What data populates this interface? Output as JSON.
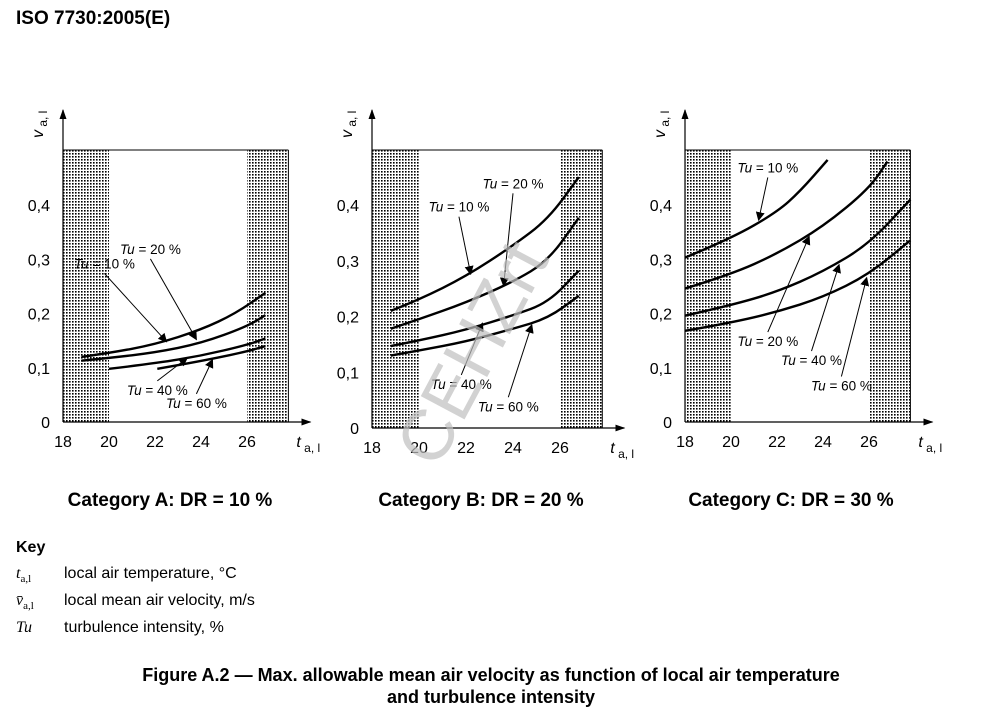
{
  "header": "ISO 7730:2005(E)",
  "watermark": "CEHZrt",
  "key": {
    "heading": "Key",
    "rows": [
      {
        "symbol": "t",
        "sub": "a,l",
        "text": "local air temperature, °C"
      },
      {
        "symbol": "v̄",
        "sub": "a,l",
        "text": "local mean air velocity, m/s"
      },
      {
        "symbol": "Tu",
        "sub": "",
        "text": "turbulence intensity, %"
      }
    ]
  },
  "caption": {
    "line1": "Figure A.2 — Max. allowable mean air velocity as function of local air temperature",
    "line2": "and turbulence intensity"
  },
  "chart_data": [
    {
      "type": "line",
      "title": "Category A: DR = 10 %",
      "xlabel": "t a, l",
      "ylabel": "v a, l",
      "xlim": [
        18,
        27.8
      ],
      "ylim": [
        0,
        0.48
      ],
      "x_ticks": [
        "18",
        "20",
        "22",
        "24",
        "26"
      ],
      "y_ticks": [
        "0",
        "0,1",
        "0,2",
        "0,3",
        "0,4"
      ],
      "shaded_x": [
        [
          18,
          20
        ],
        [
          26,
          28
        ]
      ],
      "series": [
        {
          "name": "Tu = 10 %",
          "x": [
            18.8,
            20,
            22,
            24,
            25.5,
            26.8
          ],
          "y": [
            0.12,
            0.127,
            0.143,
            0.17,
            0.2,
            0.238
          ]
        },
        {
          "name": "Tu = 20 %",
          "x": [
            18.8,
            20,
            22,
            24,
            26,
            26.8
          ],
          "y": [
            0.113,
            0.118,
            0.128,
            0.145,
            0.176,
            0.197
          ]
        },
        {
          "name": "Tu = 40 %",
          "x": [
            20,
            22,
            24,
            26,
            26.8
          ],
          "y": [
            0.098,
            0.108,
            0.122,
            0.142,
            0.154
          ]
        },
        {
          "name": "Tu = 60 %",
          "x": [
            22.1,
            24,
            26,
            26.8
          ],
          "y": [
            0.098,
            0.112,
            0.13,
            0.14
          ]
        }
      ],
      "annotations": [
        {
          "text": "Tu = 20 %",
          "label_x": 21.8,
          "label_y": 0.31,
          "target_x": 23.8,
          "target_y": 0.152
        },
        {
          "text": "Tu = 10 %",
          "label_x": 19.8,
          "label_y": 0.283,
          "target_x": 22.5,
          "target_y": 0.148
        },
        {
          "text": "Tu = 40 %",
          "label_x": 22.1,
          "label_y": 0.05,
          "target_x": 23.4,
          "target_y": 0.118
        },
        {
          "text": "Tu = 60 %",
          "label_x": 23.8,
          "label_y": 0.026,
          "target_x": 24.5,
          "target_y": 0.115
        }
      ]
    },
    {
      "type": "line",
      "title": "Category B: DR = 20 %",
      "xlabel": "t a, l",
      "ylabel": "v a, l",
      "xlim": [
        18,
        27.8
      ],
      "ylim": [
        0,
        0.48
      ],
      "x_ticks": [
        "18",
        "20",
        "22",
        "24",
        "26"
      ],
      "y_ticks": [
        "0",
        "0,1",
        "0,2",
        "0,3",
        "0,4"
      ],
      "shaded_x": [
        [
          18,
          20
        ],
        [
          26,
          28
        ]
      ],
      "series": [
        {
          "name": "Tu = 10 %",
          "x": [
            18.8,
            20,
            22,
            24,
            25.5,
            26.8
          ],
          "y": [
            0.21,
            0.23,
            0.272,
            0.327,
            0.375,
            0.45
          ]
        },
        {
          "name": "Tu = 20 %",
          "x": [
            18.8,
            20,
            22,
            24,
            25.5,
            26.8
          ],
          "y": [
            0.178,
            0.195,
            0.225,
            0.262,
            0.3,
            0.377
          ]
        },
        {
          "name": "Tu = 40 %",
          "x": [
            18.8,
            20,
            22,
            24,
            25.5,
            26.8
          ],
          "y": [
            0.147,
            0.157,
            0.176,
            0.202,
            0.225,
            0.282
          ]
        },
        {
          "name": "Tu = 60 %",
          "x": [
            18.8,
            20,
            22,
            24,
            25.5,
            26.8
          ],
          "y": [
            0.13,
            0.139,
            0.155,
            0.178,
            0.197,
            0.237
          ]
        }
      ],
      "annotations": [
        {
          "text": "Tu = 20 %",
          "label_x": 24.0,
          "label_y": 0.43,
          "target_x": 23.6,
          "target_y": 0.255
        },
        {
          "text": "Tu = 10 %",
          "label_x": 21.7,
          "label_y": 0.388,
          "target_x": 22.2,
          "target_y": 0.276
        },
        {
          "text": "Tu = 40 %",
          "label_x": 21.8,
          "label_y": 0.07,
          "target_x": 22.7,
          "target_y": 0.188
        },
        {
          "text": "Tu = 60 %",
          "label_x": 23.8,
          "label_y": 0.03,
          "target_x": 24.8,
          "target_y": 0.185
        }
      ]
    },
    {
      "type": "line",
      "title": "Category C: DR = 30 %",
      "xlabel": "t a, l",
      "ylabel": "v a, l",
      "xlim": [
        18,
        27.8
      ],
      "ylim": [
        0,
        0.48
      ],
      "x_ticks": [
        "18",
        "20",
        "22",
        "24",
        "26"
      ],
      "y_ticks": [
        "0",
        "0,1",
        "0,2",
        "0,3",
        "0,4"
      ],
      "shaded_x": [
        [
          18,
          20
        ],
        [
          26,
          28
        ]
      ],
      "series": [
        {
          "name": "Tu = 10 %",
          "x": [
            18,
            20,
            22,
            23,
            24.2
          ],
          "y": [
            0.303,
            0.338,
            0.387,
            0.425,
            0.483
          ]
        },
        {
          "name": "Tu = 20 %",
          "x": [
            18,
            20,
            22,
            24,
            26,
            26.8
          ],
          "y": [
            0.246,
            0.272,
            0.31,
            0.36,
            0.43,
            0.48
          ]
        },
        {
          "name": "Tu = 40 %",
          "x": [
            18,
            20,
            22,
            24,
            26,
            27.8
          ],
          "y": [
            0.196,
            0.215,
            0.24,
            0.277,
            0.328,
            0.41
          ]
        },
        {
          "name": "Tu = 60 %",
          "x": [
            18,
            20,
            22,
            24,
            26,
            27.8
          ],
          "y": [
            0.168,
            0.183,
            0.203,
            0.23,
            0.272,
            0.335
          ]
        }
      ],
      "annotations": [
        {
          "text": "Tu = 10 %",
          "label_x": 21.6,
          "label_y": 0.46,
          "target_x": 21.2,
          "target_y": 0.372
        },
        {
          "text": "Tu = 20 %",
          "label_x": 21.6,
          "label_y": 0.14,
          "target_x": 23.4,
          "target_y": 0.342
        },
        {
          "text": "Tu = 40 %",
          "label_x": 23.5,
          "label_y": 0.105,
          "target_x": 24.7,
          "target_y": 0.29
        },
        {
          "text": "Tu = 60 %",
          "label_x": 24.8,
          "label_y": 0.058,
          "target_x": 25.9,
          "target_y": 0.266
        }
      ]
    }
  ]
}
